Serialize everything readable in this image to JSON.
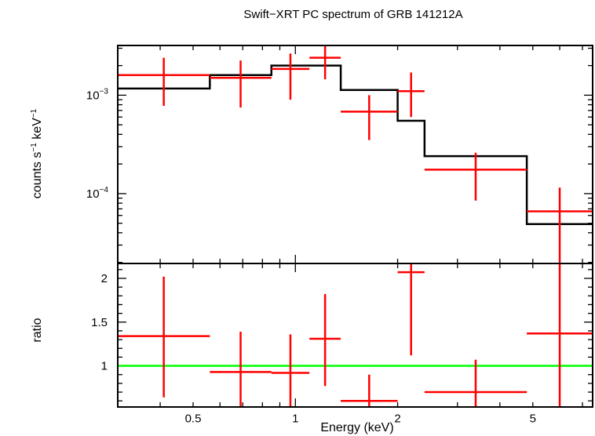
{
  "chart_data": {
    "type": "spectrum",
    "title": "Swift−XRT PC spectrum of GRB 141212A",
    "xlabel": "Energy (keV)",
    "xscale": "log",
    "xlim": [
      0.3,
      7.5
    ],
    "x_ticks": [
      {
        "value": 0.5,
        "label": "0.5"
      },
      {
        "value": 1,
        "label": "1"
      },
      {
        "value": 2,
        "label": "2"
      },
      {
        "value": 5,
        "label": "5"
      }
    ],
    "colors": {
      "data": "#ff0000",
      "model": "#000000",
      "unity": "#00ff00"
    },
    "panels": [
      {
        "name": "spectrum",
        "ylabel_main": "counts s",
        "ylabel_sup1": "−1",
        "ylabel_mid": " keV",
        "ylabel_sup2": "−1",
        "yscale": "log",
        "ylim": [
          1.95e-05,
          0.0032
        ],
        "y_ticks": [
          {
            "value": 0.001,
            "base": "10",
            "exp": "−3"
          },
          {
            "value": 0.0001,
            "base": "10",
            "exp": "−4"
          }
        ],
        "data": [
          {
            "xlo": 0.3,
            "xhi": 0.56,
            "y": 0.0016,
            "ylo": 0.00078,
            "yhi": 0.0024
          },
          {
            "xlo": 0.56,
            "xhi": 0.85,
            "y": 0.0015,
            "ylo": 0.00075,
            "yhi": 0.00225
          },
          {
            "xlo": 0.85,
            "xhi": 1.1,
            "y": 0.00185,
            "ylo": 0.0009,
            "yhi": 0.00265
          },
          {
            "xlo": 1.1,
            "xhi": 1.36,
            "y": 0.0024,
            "ylo": 0.00145,
            "yhi": 0.0033
          },
          {
            "xlo": 1.36,
            "xhi": 2.0,
            "y": 0.00068,
            "ylo": 0.00035,
            "yhi": 0.001
          },
          {
            "xlo": 2.0,
            "xhi": 2.4,
            "y": 0.0011,
            "ylo": 0.0006,
            "yhi": 0.0017
          },
          {
            "xlo": 2.4,
            "xhi": 4.8,
            "y": 0.000175,
            "ylo": 8.5e-05,
            "yhi": 0.00026
          },
          {
            "xlo": 4.8,
            "xhi": 7.5,
            "y": 6.6e-05,
            "ylo": 2e-05,
            "yhi": 0.000115
          }
        ],
        "model": [
          {
            "xlo": 0.3,
            "xhi": 0.56,
            "y": 0.00117
          },
          {
            "xlo": 0.56,
            "xhi": 0.85,
            "y": 0.0016
          },
          {
            "xlo": 0.85,
            "xhi": 1.36,
            "y": 0.002
          },
          {
            "xlo": 1.36,
            "xhi": 2.0,
            "y": 0.00113
          },
          {
            "xlo": 2.0,
            "xhi": 2.4,
            "y": 0.00055
          },
          {
            "xlo": 2.4,
            "xhi": 4.8,
            "y": 0.00024
          },
          {
            "xlo": 4.8,
            "xhi": 7.5,
            "y": 4.9e-05
          }
        ]
      },
      {
        "name": "ratio",
        "ylabel": "ratio",
        "yscale": "linear",
        "ylim": [
          0.53,
          2.17
        ],
        "y_ticks": [
          {
            "value": 1,
            "label": "1"
          },
          {
            "value": 1.5,
            "label": "1.5"
          },
          {
            "value": 2,
            "label": "2"
          }
        ],
        "unity": 1,
        "data": [
          {
            "xlo": 0.3,
            "xhi": 0.56,
            "y": 1.34,
            "ylo": 0.64,
            "yhi": 2.02
          },
          {
            "xlo": 0.56,
            "xhi": 0.85,
            "y": 0.93,
            "ylo": 0.53,
            "yhi": 1.39
          },
          {
            "xlo": 0.85,
            "xhi": 1.1,
            "y": 0.92,
            "ylo": 0.53,
            "yhi": 1.36
          },
          {
            "xlo": 1.1,
            "xhi": 1.36,
            "y": 1.31,
            "ylo": 0.77,
            "yhi": 1.82
          },
          {
            "xlo": 1.36,
            "xhi": 2.0,
            "y": 0.6,
            "ylo": 0.53,
            "yhi": 0.9
          },
          {
            "xlo": 2.0,
            "xhi": 2.4,
            "y": 2.07,
            "ylo": 1.12,
            "yhi": 2.17
          },
          {
            "xlo": 2.4,
            "xhi": 4.8,
            "y": 0.7,
            "ylo": 0.53,
            "yhi": 1.07
          },
          {
            "xlo": 4.8,
            "xhi": 7.5,
            "y": 1.37,
            "ylo": 0.53,
            "yhi": 2.17
          }
        ]
      }
    ]
  }
}
